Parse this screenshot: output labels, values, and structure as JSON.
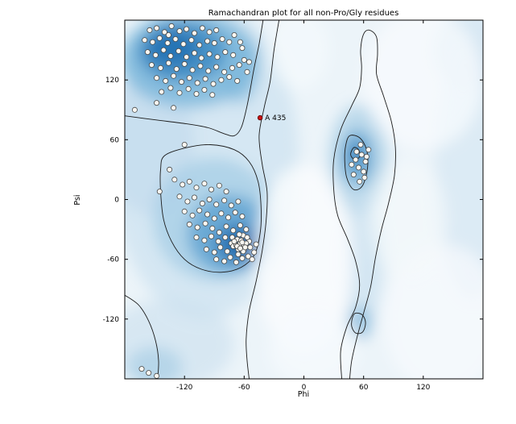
{
  "chart_data": {
    "type": "scatter",
    "title": "Ramachandran plot for all non-Pro/Gly residues",
    "xlabel": "Phi",
    "ylabel": "Psi",
    "xlim": [
      -180,
      180
    ],
    "ylim": [
      -180,
      180
    ],
    "xticks": [
      -120,
      -60,
      0,
      60,
      120
    ],
    "yticks": [
      -120,
      -60,
      0,
      60,
      120
    ],
    "grid": false,
    "legend": "none",
    "colors": {
      "plot_bg": "#ecf4f9",
      "point_fill": "#faf8f2",
      "point_edge": "#4a4a4a",
      "outlier_fill": "#cc1111",
      "outlier_edge": "#550000",
      "contour": "#1b1b1b"
    },
    "outlier": {
      "label": "A 435",
      "phi": -44,
      "psi": 82
    },
    "points": [
      [
        -155,
        170
      ],
      [
        -148,
        172
      ],
      [
        -140,
        168
      ],
      [
        -133,
        174
      ],
      [
        -125,
        169
      ],
      [
        -118,
        171
      ],
      [
        -110,
        167
      ],
      [
        -102,
        172
      ],
      [
        -95,
        168
      ],
      [
        -88,
        170
      ],
      [
        -160,
        160
      ],
      [
        -152,
        158
      ],
      [
        -145,
        162
      ],
      [
        -137,
        157
      ],
      [
        -129,
        161
      ],
      [
        -121,
        156
      ],
      [
        -113,
        160
      ],
      [
        -105,
        155
      ],
      [
        -97,
        159
      ],
      [
        -90,
        157
      ],
      [
        -82,
        161
      ],
      [
        -75,
        158
      ],
      [
        -157,
        148
      ],
      [
        -149,
        145
      ],
      [
        -141,
        150
      ],
      [
        -134,
        144
      ],
      [
        -126,
        149
      ],
      [
        -118,
        143
      ],
      [
        -110,
        147
      ],
      [
        -103,
        142
      ],
      [
        -95,
        146
      ],
      [
        -87,
        143
      ],
      [
        -79,
        148
      ],
      [
        -71,
        145
      ],
      [
        -153,
        135
      ],
      [
        -144,
        132
      ],
      [
        -136,
        137
      ],
      [
        -128,
        131
      ],
      [
        -120,
        136
      ],
      [
        -112,
        130
      ],
      [
        -104,
        134
      ],
      [
        -96,
        129
      ],
      [
        -88,
        133
      ],
      [
        -80,
        128
      ],
      [
        -72,
        132
      ],
      [
        -65,
        135
      ],
      [
        -148,
        122
      ],
      [
        -139,
        119
      ],
      [
        -131,
        124
      ],
      [
        -123,
        118
      ],
      [
        -115,
        122
      ],
      [
        -107,
        117
      ],
      [
        -99,
        121
      ],
      [
        -91,
        116
      ],
      [
        -83,
        120
      ],
      [
        -75,
        123
      ],
      [
        -67,
        119
      ],
      [
        -143,
        108
      ],
      [
        -134,
        112
      ],
      [
        -125,
        107
      ],
      [
        -116,
        111
      ],
      [
        -108,
        106
      ],
      [
        -100,
        110
      ],
      [
        -92,
        105
      ],
      [
        -60,
        140
      ],
      [
        -57,
        128
      ],
      [
        -62,
        152
      ],
      [
        -55,
        138
      ],
      [
        -136,
        165
      ],
      [
        -70,
        165
      ],
      [
        -64,
        158
      ],
      [
        -148,
        97
      ],
      [
        -131,
        92
      ],
      [
        -170,
        90
      ],
      [
        -130,
        20
      ],
      [
        -122,
        15
      ],
      [
        -115,
        18
      ],
      [
        -108,
        12
      ],
      [
        -100,
        16
      ],
      [
        -93,
        10
      ],
      [
        -85,
        14
      ],
      [
        -78,
        8
      ],
      [
        -125,
        3
      ],
      [
        -117,
        -2
      ],
      [
        -110,
        2
      ],
      [
        -102,
        -4
      ],
      [
        -95,
        0
      ],
      [
        -88,
        -5
      ],
      [
        -80,
        -1
      ],
      [
        -73,
        -6
      ],
      [
        -66,
        -2
      ],
      [
        -120,
        -12
      ],
      [
        -112,
        -16
      ],
      [
        -105,
        -11
      ],
      [
        -97,
        -15
      ],
      [
        -90,
        -19
      ],
      [
        -83,
        -14
      ],
      [
        -76,
        -18
      ],
      [
        -69,
        -13
      ],
      [
        -62,
        -17
      ],
      [
        -115,
        -25
      ],
      [
        -107,
        -28
      ],
      [
        -99,
        -24
      ],
      [
        -92,
        -29
      ],
      [
        -85,
        -33
      ],
      [
        -78,
        -27
      ],
      [
        -71,
        -31
      ],
      [
        -64,
        -26
      ],
      [
        -58,
        -30
      ],
      [
        -108,
        -38
      ],
      [
        -100,
        -41
      ],
      [
        -93,
        -37
      ],
      [
        -86,
        -42
      ],
      [
        -79,
        -38
      ],
      [
        -73,
        -44
      ],
      [
        -67,
        -40
      ],
      [
        -61,
        -36
      ],
      [
        -55,
        -42
      ],
      [
        -98,
        -50
      ],
      [
        -90,
        -53
      ],
      [
        -84,
        -48
      ],
      [
        -77,
        -52
      ],
      [
        -71,
        -47
      ],
      [
        -66,
        -55
      ],
      [
        -60,
        -50
      ],
      [
        -54,
        -48
      ],
      [
        -88,
        -60
      ],
      [
        -80,
        -62
      ],
      [
        -74,
        -58
      ],
      [
        -68,
        -63
      ],
      [
        -62,
        -59
      ],
      [
        -56,
        -57
      ],
      [
        -50,
        -53
      ],
      [
        -72,
        -38
      ],
      [
        -68,
        -46
      ],
      [
        -64,
        -44
      ],
      [
        -60,
        -46
      ],
      [
        -66,
        -50
      ],
      [
        -63,
        -41
      ],
      [
        -58,
        -44
      ],
      [
        -70,
        -42
      ],
      [
        -61,
        -52
      ],
      [
        -57,
        -38
      ],
      [
        -65,
        -35
      ],
      [
        -59,
        -48
      ],
      [
        -62,
        -43
      ],
      [
        -67,
        -47
      ],
      [
        -64,
        -49
      ],
      [
        -120,
        55
      ],
      [
        -135,
        30
      ],
      [
        -145,
        8
      ],
      [
        -52,
        -60
      ],
      [
        -48,
        -45
      ],
      [
        58,
        45
      ],
      [
        52,
        40
      ],
      [
        62,
        38
      ],
      [
        55,
        32
      ],
      [
        60,
        28
      ],
      [
        50,
        25
      ],
      [
        65,
        50
      ],
      [
        57,
        55
      ],
      [
        53,
        48
      ],
      [
        61,
        22
      ],
      [
        56,
        18
      ],
      [
        48,
        35
      ],
      [
        63,
        43
      ],
      [
        -156,
        -174
      ],
      [
        -148,
        -177
      ],
      [
        -163,
        -170
      ]
    ],
    "contours": [
      {
        "closed": false,
        "points": [
          [
            -180,
            84
          ],
          [
            -150,
            80
          ],
          [
            -118,
            76
          ],
          [
            -96,
            72
          ],
          [
            -80,
            66
          ],
          [
            -70,
            64
          ],
          [
            -63,
            72
          ],
          [
            -58,
            90
          ],
          [
            -54,
            110
          ],
          [
            -50,
            132
          ],
          [
            -45,
            156
          ],
          [
            -41,
            180
          ]
        ]
      },
      {
        "closed": true,
        "points": [
          [
            -140,
            44
          ],
          [
            -118,
            52
          ],
          [
            -94,
            55
          ],
          [
            -70,
            50
          ],
          [
            -55,
            38
          ],
          [
            -46,
            18
          ],
          [
            -43,
            -8
          ],
          [
            -44,
            -34
          ],
          [
            -50,
            -56
          ],
          [
            -63,
            -68
          ],
          [
            -82,
            -73
          ],
          [
            -103,
            -70
          ],
          [
            -120,
            -60
          ],
          [
            -133,
            -42
          ],
          [
            -141,
            -20
          ],
          [
            -144,
            8
          ],
          [
            -144,
            30
          ]
        ]
      },
      {
        "closed": false,
        "points": [
          [
            -25,
            180
          ],
          [
            -30,
            150
          ],
          [
            -34,
            118
          ],
          [
            -40,
            92
          ],
          [
            -45,
            64
          ],
          [
            -42,
            36
          ],
          [
            -37,
            8
          ],
          [
            -38,
            -22
          ],
          [
            -42,
            -52
          ],
          [
            -48,
            -82
          ],
          [
            -55,
            -112
          ],
          [
            -58,
            -140
          ],
          [
            -57,
            -162
          ],
          [
            -55,
            -180
          ]
        ]
      },
      {
        "closed": false,
        "points": [
          [
            -180,
            -96
          ],
          [
            -166,
            -106
          ],
          [
            -156,
            -122
          ],
          [
            -149,
            -142
          ],
          [
            -146,
            -162
          ],
          [
            -147,
            -180
          ]
        ]
      },
      {
        "closed": false,
        "points": [
          [
            38,
            -180
          ],
          [
            37,
            -152
          ],
          [
            43,
            -128
          ],
          [
            52,
            -108
          ],
          [
            56,
            -86
          ],
          [
            52,
            -62
          ],
          [
            44,
            -40
          ],
          [
            34,
            -16
          ],
          [
            30,
            10
          ],
          [
            30,
            40
          ],
          [
            37,
            70
          ],
          [
            48,
            94
          ],
          [
            56,
            112
          ],
          [
            58,
            132
          ],
          [
            57,
            150
          ],
          [
            60,
            166
          ],
          [
            66,
            170
          ],
          [
            73,
            163
          ],
          [
            74,
            146
          ],
          [
            73,
            126
          ],
          [
            80,
            104
          ],
          [
            88,
            78
          ],
          [
            92,
            52
          ],
          [
            91,
            24
          ],
          [
            85,
            -4
          ],
          [
            78,
            -30
          ],
          [
            72,
            -58
          ],
          [
            67,
            -88
          ],
          [
            60,
            -114
          ],
          [
            53,
            -140
          ],
          [
            48,
            -162
          ],
          [
            46,
            -180
          ]
        ]
      },
      {
        "closed": true,
        "points": [
          [
            46,
            64
          ],
          [
            56,
            62
          ],
          [
            63,
            50
          ],
          [
            64,
            32
          ],
          [
            59,
            14
          ],
          [
            50,
            10
          ],
          [
            43,
            22
          ],
          [
            41,
            40
          ],
          [
            42,
            54
          ]
        ]
      },
      {
        "closed": true,
        "points": [
          [
            50,
            52
          ],
          [
            55,
            50
          ],
          [
            56,
            43
          ],
          [
            51,
            40
          ],
          [
            47,
            45
          ]
        ]
      },
      {
        "closed": true,
        "points": [
          [
            52,
            -114
          ],
          [
            59,
            -116
          ],
          [
            62,
            -124
          ],
          [
            59,
            -133
          ],
          [
            52,
            -134
          ],
          [
            48,
            -127
          ],
          [
            49,
            -118
          ]
        ]
      }
    ],
    "density_blobs": [
      [
        -100,
        40,
        95,
        160,
        "#d3e6f2",
        0.9
      ],
      [
        -155,
        55,
        45,
        70,
        "#c3dcee",
        0.7
      ],
      [
        -115,
        140,
        70,
        48,
        "#7db8dc",
        0.85
      ],
      [
        -122,
        148,
        45,
        30,
        "#3f8cc3",
        0.85
      ],
      [
        -132,
        152,
        26,
        18,
        "#1f6eb0",
        0.8
      ],
      [
        -65,
        130,
        20,
        34,
        "#7db8dc",
        0.6
      ],
      [
        -90,
        -20,
        62,
        62,
        "#a8cee6",
        0.8
      ],
      [
        -75,
        -35,
        42,
        40,
        "#5ca0cf",
        0.8
      ],
      [
        -66,
        -44,
        24,
        20,
        "#2b77b6",
        0.85
      ],
      [
        -63,
        -46,
        13,
        11,
        "#175e9f",
        0.8
      ],
      [
        55,
        40,
        30,
        55,
        "#a8cee6",
        0.7
      ],
      [
        54,
        42,
        16,
        28,
        "#5ca0cf",
        0.75
      ],
      [
        52,
        45,
        8,
        13,
        "#2b77b6",
        0.7
      ],
      [
        60,
        -60,
        20,
        65,
        "#c9dfef",
        0.7
      ],
      [
        56,
        -124,
        13,
        17,
        "#6faed6",
        0.6
      ],
      [
        -150,
        -168,
        28,
        20,
        "#6faed6",
        0.65
      ],
      [
        -135,
        -145,
        65,
        45,
        "#c9dfef",
        0.6
      ],
      [
        170,
        30,
        38,
        130,
        "#d8e9f4",
        0.8
      ],
      [
        165,
        150,
        35,
        40,
        "#cfe3f1",
        0.7
      ],
      [
        0,
        -60,
        50,
        95,
        "#fbfdfe",
        0.8
      ],
      [
        10,
        -150,
        45,
        40,
        "#f7fbfd",
        0.7
      ],
      [
        -5,
        150,
        30,
        40,
        "#f7fbfd",
        0.6
      ],
      [
        120,
        120,
        60,
        70,
        "#f8fbfd",
        0.75
      ],
      [
        140,
        -120,
        60,
        75,
        "#f8fbfd",
        0.7
      ],
      [
        105,
        -20,
        40,
        60,
        "#f5fafc",
        0.6
      ]
    ]
  }
}
